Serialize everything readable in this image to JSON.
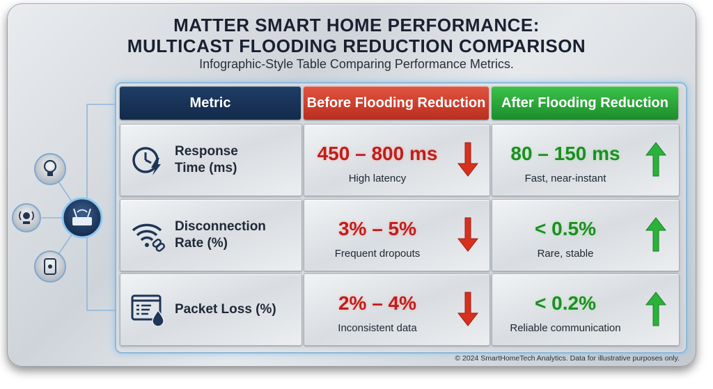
{
  "title_line1": "MATTER SMART HOME PERFORMANCE:",
  "title_line2": "MULTICAST FLOODING REDUCTION COMPARISON",
  "subtitle": "Infographic-Style Table Comparing Performance Metrics.",
  "headers": {
    "metric": "Metric",
    "before": "Before Flooding Reduction",
    "after": "After Flooding Reduction"
  },
  "rows": [
    {
      "icon": "clock-lightning-icon",
      "metric": "Response\nTime (ms)",
      "before_value": "450 – 800 ms",
      "before_note": "High latency",
      "after_value": "80 – 150 ms",
      "after_note": "Fast, near-instant"
    },
    {
      "icon": "wifi-broken-link-icon",
      "metric": "Disconnection\nRate (%)",
      "before_value": "3% – 5%",
      "before_note": "Frequent dropouts",
      "after_value": "< 0.5%",
      "after_note": "Rare, stable"
    },
    {
      "icon": "document-drop-icon",
      "metric": "Packet Loss (%)",
      "before_value": "2% – 4%",
      "before_note": "Inconsistent data",
      "after_value": "< 0.2%",
      "after_note": "Reliable communication"
    }
  ],
  "footer": "© 2024 SmartHomeTech Analytics. Data for illustrative purposes only.",
  "colors": {
    "before": "#c11d1a",
    "after": "#1d8e22",
    "metric_header": "#1a355c"
  },
  "network_icons": [
    "lightbulb-icon",
    "router-icon",
    "speaker-icon",
    "sensor-icon"
  ]
}
